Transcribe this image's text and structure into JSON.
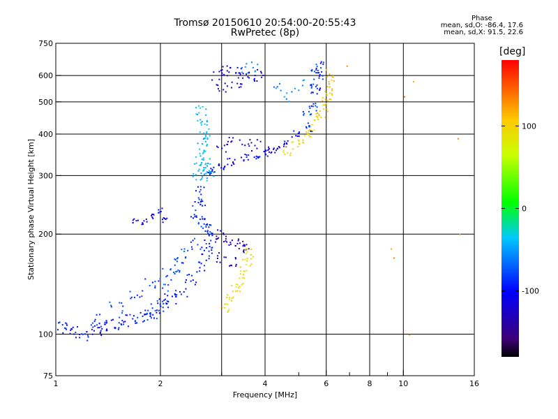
{
  "chart_data": {
    "type": "scatter",
    "title": "Tromsø 20150610 20:54:00-20:55:43",
    "subtitle": "RwPretec (8p)",
    "xlabel": "Frequency [MHz]",
    "ylabel": "Stationary phase Virtual Height [km]",
    "x_scale": "log",
    "y_scale": "log",
    "xlim": [
      1,
      16
    ],
    "ylim": [
      75,
      750
    ],
    "x_ticks": [
      1,
      2,
      4,
      6,
      8,
      10,
      16
    ],
    "x_tick_labels": [
      "1",
      "2",
      "4",
      "6",
      "8",
      "10",
      "16"
    ],
    "x_minor_ticks": [
      3,
      5,
      7,
      9
    ],
    "y_ticks": [
      75,
      100,
      200,
      300,
      400,
      500,
      600,
      750
    ],
    "y_tick_labels": [
      "75",
      "100",
      "200",
      "300",
      "400",
      "500",
      "600",
      "750"
    ],
    "grid_x": [
      2,
      3,
      4,
      6,
      8,
      10
    ],
    "grid_y": [
      100,
      200,
      300,
      400,
      500,
      600
    ],
    "grid": true,
    "phase_stats": {
      "heading": "Phase",
      "line_o": "mean, sd,O: -86.4, 17.6",
      "line_x": "mean, sd,X:  91.5, 22.6"
    },
    "colorbar": {
      "label": "[deg]",
      "min": -180,
      "max": 180,
      "ticks": [
        100,
        0,
        -100
      ],
      "tick_labels": [
        "100",
        "0",
        "-100"
      ]
    },
    "series": [
      {
        "points": [
          [
            1.0,
            105
          ],
          [
            1.08,
            104
          ],
          [
            1.15,
            102
          ],
          [
            1.22,
            100
          ],
          [
            1.3,
            103
          ],
          [
            1.38,
            104
          ],
          [
            1.45,
            106
          ],
          [
            1.55,
            108
          ],
          [
            1.65,
            110
          ],
          [
            1.75,
            112
          ],
          [
            1.85,
            115
          ],
          [
            1.95,
            118
          ],
          [
            2.05,
            122
          ],
          [
            2.15,
            128
          ],
          [
            2.3,
            135
          ],
          [
            2.45,
            145
          ],
          [
            2.6,
            160
          ],
          [
            2.7,
            175
          ],
          [
            2.8,
            190
          ]
        ],
        "phase": -95,
        "spread": 0.045,
        "density": 9
      },
      {
        "points": [
          [
            1.3,
            110
          ],
          [
            1.5,
            120
          ],
          [
            1.7,
            132
          ],
          [
            1.9,
            140
          ],
          [
            2.1,
            150
          ],
          [
            2.3,
            165
          ],
          [
            2.5,
            185
          ],
          [
            2.7,
            205
          ]
        ],
        "phase": -85,
        "spread": 0.05,
        "density": 8
      },
      {
        "points": [
          [
            1.9,
            115
          ],
          [
            2.0,
            125
          ],
          [
            2.1,
            140
          ],
          [
            2.2,
            160
          ],
          [
            2.3,
            175
          ]
        ],
        "phase": -75,
        "spread": 0.04,
        "density": 5
      },
      {
        "points": [
          [
            1.7,
            220
          ],
          [
            1.8,
            218
          ],
          [
            1.9,
            225
          ],
          [
            2.0,
            235
          ],
          [
            2.05,
            220
          ]
        ],
        "phase": -110,
        "spread": 0.02,
        "density": 6
      },
      {
        "points": [
          [
            2.5,
            230
          ],
          [
            2.55,
            250
          ],
          [
            2.6,
            270
          ],
          [
            2.62,
            250
          ],
          [
            2.65,
            220
          ],
          [
            2.7,
            210
          ],
          [
            2.75,
            200
          ]
        ],
        "phase": -90,
        "spread": 0.03,
        "density": 7
      },
      {
        "points": [
          [
            2.95,
            200
          ],
          [
            3.1,
            195
          ],
          [
            3.25,
            190
          ],
          [
            3.4,
            185
          ],
          [
            3.5,
            180
          ],
          [
            3.2,
            165
          ],
          [
            3.0,
            170
          ]
        ],
        "phase": -130,
        "spread": 0.035,
        "density": 7
      },
      {
        "points": [
          [
            3.1,
            120
          ],
          [
            3.2,
            128
          ],
          [
            3.3,
            137
          ],
          [
            3.4,
            145
          ],
          [
            3.5,
            155
          ],
          [
            3.55,
            165
          ],
          [
            3.6,
            175
          ]
        ],
        "phase": 95,
        "spread": 0.03,
        "density": 8
      },
      {
        "points": [
          [
            2.55,
            300
          ],
          [
            2.6,
            320
          ],
          [
            2.62,
            350
          ],
          [
            2.65,
            380
          ],
          [
            2.68,
            400
          ],
          [
            2.7,
            330
          ],
          [
            2.75,
            310
          ],
          [
            2.8,
            300
          ],
          [
            2.65,
            440
          ],
          [
            2.62,
            470
          ]
        ],
        "phase": -40,
        "spread": 0.035,
        "density": 9
      },
      {
        "points": [
          [
            2.8,
            310
          ],
          [
            3.0,
            320
          ],
          [
            3.2,
            330
          ],
          [
            3.5,
            340
          ],
          [
            3.8,
            345
          ],
          [
            4.1,
            350
          ],
          [
            4.3,
            360
          ],
          [
            4.6,
            375
          ],
          [
            4.9,
            400
          ]
        ],
        "phase": -105,
        "spread": 0.025,
        "density": 8
      },
      {
        "points": [
          [
            3.0,
            360
          ],
          [
            3.2,
            380
          ],
          [
            3.5,
            375
          ],
          [
            3.8,
            370
          ],
          [
            4.1,
            365
          ]
        ],
        "phase": -130,
        "spread": 0.04,
        "density": 6
      },
      {
        "points": [
          [
            4.6,
            355
          ],
          [
            4.9,
            370
          ],
          [
            5.1,
            385
          ],
          [
            5.3,
            400
          ],
          [
            5.5,
            420
          ],
          [
            5.7,
            450
          ],
          [
            5.9,
            480
          ],
          [
            6.05,
            520
          ]
        ],
        "phase": 95,
        "spread": 0.03,
        "density": 7
      },
      {
        "points": [
          [
            5.4,
            420
          ],
          [
            5.5,
            480
          ],
          [
            5.6,
            540
          ],
          [
            5.7,
            600
          ],
          [
            5.75,
            640
          ],
          [
            5.6,
            610
          ],
          [
            5.5,
            560
          ],
          [
            5.3,
            470
          ]
        ],
        "phase": -85,
        "spread": 0.03,
        "density": 8
      },
      {
        "points": [
          [
            5.8,
            450
          ],
          [
            6.0,
            500
          ],
          [
            6.1,
            540
          ],
          [
            6.2,
            580
          ],
          [
            6.1,
            610
          ]
        ],
        "phase": 110,
        "spread": 0.03,
        "density": 5
      },
      {
        "points": [
          [
            2.9,
            600
          ],
          [
            3.1,
            620
          ],
          [
            3.4,
            610
          ],
          [
            3.6,
            590
          ],
          [
            3.8,
            600
          ],
          [
            3.3,
            570
          ],
          [
            3.0,
            555
          ]
        ],
        "phase": -120,
        "spread": 0.04,
        "density": 8
      },
      {
        "points": [
          [
            3.45,
            630
          ],
          [
            3.7,
            640
          ],
          [
            4.3,
            560
          ],
          [
            4.6,
            520
          ],
          [
            5.0,
            560
          ]
        ],
        "phase": -60,
        "spread": 0.04,
        "density": 5
      },
      {
        "points": [
          [
            9.3,
            180
          ],
          [
            9.4,
            170
          ],
          [
            10.0,
            520
          ],
          [
            10.6,
            570
          ],
          [
            10.4,
            100
          ],
          [
            14.5,
            390
          ],
          [
            14.5,
            200
          ],
          [
            6.9,
            640
          ]
        ],
        "phase": 130,
        "spread": 0.01,
        "density": 1
      }
    ]
  }
}
